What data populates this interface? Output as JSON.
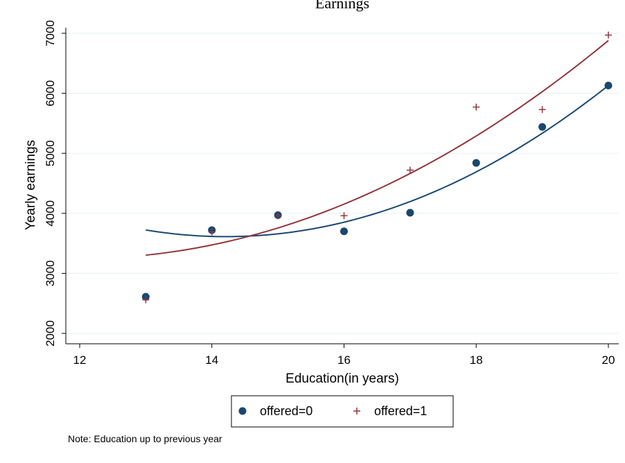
{
  "chart_data": {
    "type": "scatter",
    "title": "Earnings",
    "xlabel": "Education(in years)",
    "ylabel": "Yearly earnings",
    "xlim": [
      12,
      20
    ],
    "ylim": [
      2000,
      7000
    ],
    "xticks": [
      "12",
      "14",
      "16",
      "18",
      "20"
    ],
    "yticks": [
      "2000",
      "3000",
      "4000",
      "5000",
      "6000",
      "7000"
    ],
    "grid": "horizontal",
    "legend_position": "bottom",
    "series": [
      {
        "name": "offered=0",
        "marker": "circle",
        "color": "#1a476f",
        "x": [
          13,
          14,
          15,
          16,
          17,
          18,
          19,
          20
        ],
        "y": [
          2610,
          3720,
          3970,
          3700,
          4010,
          4840,
          5440,
          6130
        ],
        "fit": {
          "type": "quadratic",
          "x": [
            13,
            14,
            16,
            20
          ],
          "y": [
            3720,
            3620,
            3850,
            6130
          ]
        }
      },
      {
        "name": "offered=1",
        "marker": "plus",
        "color": "#90353b",
        "x": [
          13,
          14,
          15,
          16,
          17,
          18,
          19,
          20
        ],
        "y": [
          2560,
          3690,
          3960,
          3960,
          4720,
          5770,
          5730,
          6970
        ],
        "fit": {
          "type": "quadratic",
          "x": [
            13,
            14,
            16,
            20
          ],
          "y": [
            3300,
            3480,
            4150,
            6880
          ]
        }
      }
    ],
    "note": "Note: Education up to previous year"
  }
}
